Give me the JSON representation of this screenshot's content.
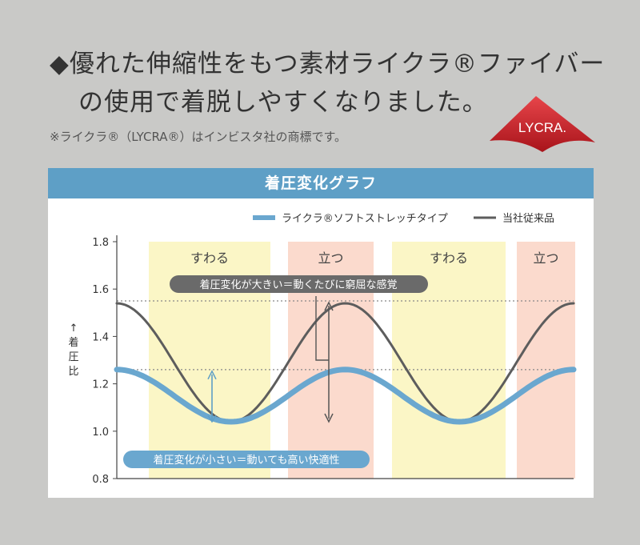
{
  "headline": {
    "line1": "◆優れた伸縮性をもつ素材ライクラ®ファイバー",
    "line2": "の使用で着脱しやすくなりました。"
  },
  "note": "※ライクラ®（LYCRA®）はインビスタ社の商標です。",
  "logo": {
    "text": "LYCRA.",
    "color": "#c8242b"
  },
  "panel": {
    "header": "着圧変化グラフ",
    "header_color": "#5e9fc6"
  },
  "chart_data": {
    "type": "line",
    "title": "着圧変化グラフ",
    "ylabel": "↑着圧比",
    "xlabel": "",
    "ylim": [
      0.8,
      1.8
    ],
    "yticks": [
      "0.8",
      "1.0",
      "1.2",
      "1.4",
      "1.6",
      "1.8"
    ],
    "grid": false,
    "legend": "top-right",
    "phases": [
      {
        "label": "すわる",
        "color": "#fbf6c6"
      },
      {
        "label": "立つ",
        "color": "#fbdacd"
      },
      {
        "label": "すわる",
        "color": "#fbf6c6"
      },
      {
        "label": "立つ",
        "color": "#fbdacd"
      }
    ],
    "reference_lines": [
      1.55,
      1.26
    ],
    "series": [
      {
        "name": "ライクラ®ソフトストレッチタイプ",
        "color": "#6aa7cf",
        "min": 1.04,
        "max": 1.26
      },
      {
        "name": "当社従来品",
        "color": "#5d5d5d",
        "min": 1.04,
        "max": 1.54
      }
    ],
    "annotations": [
      "着圧変化が大きい＝動くたびに窮屈な感覚",
      "着圧変化が小さい＝動いても高い快適性"
    ]
  }
}
